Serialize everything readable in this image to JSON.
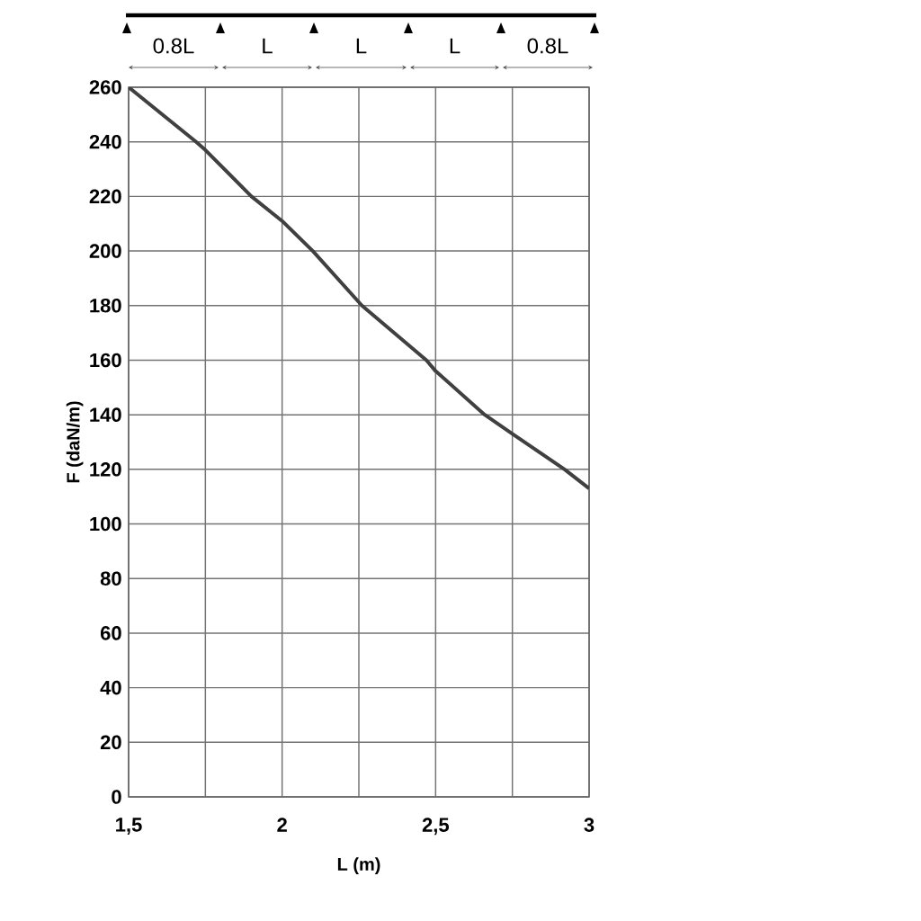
{
  "chart_data": {
    "type": "line",
    "xlabel": "L (m)",
    "ylabel": "F (daN/m)",
    "annotations": [
      "0.8L",
      "L",
      "L",
      "L",
      "0.8L"
    ],
    "x": [
      1.5,
      1.72,
      1.75,
      1.9,
      2.0,
      2.1,
      2.26,
      2.47,
      2.5,
      2.66,
      2.75,
      2.92,
      3.0
    ],
    "series": [
      {
        "color": "#404040",
        "values": [
          260,
          240,
          237,
          220,
          211,
          200,
          180,
          160,
          156,
          140,
          133,
          120,
          113
        ]
      }
    ],
    "xlim": [
      1.5,
      3
    ],
    "ylim": [
      0,
      260
    ],
    "xticks": [
      {
        "value": 1.5,
        "label": "1,5"
      },
      {
        "value": 1.75,
        "label": null
      },
      2,
      {
        "value": 2.25,
        "label": null
      },
      {
        "value": 2.5,
        "label": "2,5"
      },
      {
        "value": 2.75,
        "label": null
      },
      3
    ],
    "yticks": [
      0,
      20,
      40,
      60,
      80,
      100,
      120,
      140,
      160,
      180,
      200,
      220,
      240,
      260
    ],
    "grid": true
  }
}
